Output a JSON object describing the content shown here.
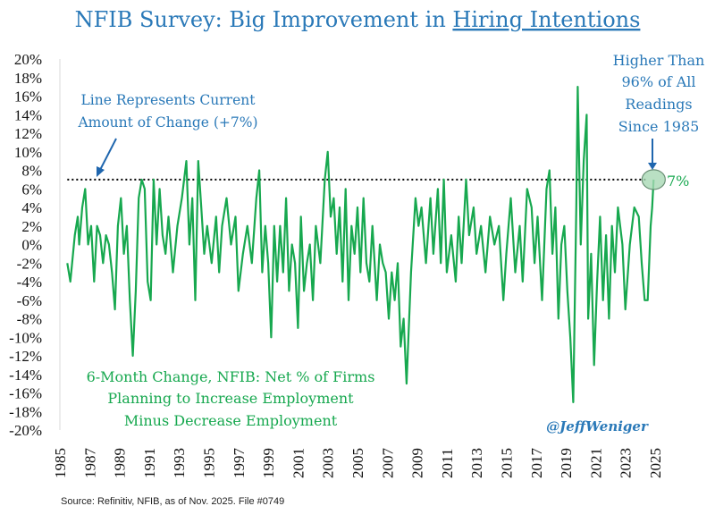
{
  "title": {
    "prefix": "NFIB Survey: Big Improvement in ",
    "underlined": "Hiring Intentions"
  },
  "annotations": {
    "current_line": [
      "Line Represents Current",
      "Amount of Change (+7%)"
    ],
    "percentile": [
      "Higher Than",
      "96% of All",
      "Readings",
      "Since 1985"
    ],
    "current_value_label": "7%",
    "series_description": [
      "6-Month Change, NFIB: Net % of Firms",
      "Planning to Increase Employment",
      "Minus Decrease Employment"
    ],
    "handle": "@JeffWeniger"
  },
  "source": "Source: Refinitiv, NFIB, as of Nov. 2025. File #0749",
  "colors": {
    "title": "#2a79b8",
    "series": "#17a84f",
    "reference_line": "#000000",
    "highlight_fill": "#a8d8b4"
  },
  "chart_data": {
    "type": "line",
    "title": "NFIB Survey: Big Improvement in Hiring Intentions",
    "xlabel": "",
    "ylabel": "",
    "xlim": [
      1985,
      2025
    ],
    "ylim": [
      -20,
      20
    ],
    "grid": false,
    "x_ticks": [
      "1985",
      "1987",
      "1989",
      "1991",
      "1993",
      "1995",
      "1997",
      "1999",
      "2001",
      "2003",
      "2005",
      "2007",
      "2009",
      "2011",
      "2013",
      "2015",
      "2017",
      "2019",
      "2021",
      "2023",
      "2025"
    ],
    "y_ticks": [
      "20%",
      "18%",
      "16%",
      "14%",
      "12%",
      "10%",
      "8%",
      "6%",
      "4%",
      "2%",
      "0%",
      "-2%",
      "-4%",
      "-6%",
      "-8%",
      "-10%",
      "-12%",
      "-14%",
      "-16%",
      "-18%",
      "-20%"
    ],
    "reference_line": {
      "value": 7,
      "style": "dotted"
    },
    "series": [
      {
        "points": [
          [
            1985.5,
            -2
          ],
          [
            1985.7,
            -4
          ],
          [
            1986,
            1
          ],
          [
            1986.2,
            3
          ],
          [
            1986.3,
            0
          ],
          [
            1986.5,
            4
          ],
          [
            1986.7,
            6
          ],
          [
            1986.9,
            0
          ],
          [
            1987.1,
            2
          ],
          [
            1987.3,
            -4
          ],
          [
            1987.5,
            2
          ],
          [
            1987.7,
            1
          ],
          [
            1987.9,
            -2
          ],
          [
            1988.1,
            1
          ],
          [
            1988.3,
            0
          ],
          [
            1988.5,
            -3
          ],
          [
            1988.7,
            -7
          ],
          [
            1988.9,
            2
          ],
          [
            1989.1,
            5
          ],
          [
            1989.3,
            -1
          ],
          [
            1989.5,
            2
          ],
          [
            1989.7,
            -6
          ],
          [
            1989.9,
            -12
          ],
          [
            1990.1,
            -5
          ],
          [
            1990.3,
            5
          ],
          [
            1990.5,
            7
          ],
          [
            1990.7,
            6
          ],
          [
            1990.9,
            -4
          ],
          [
            1991.1,
            -6
          ],
          [
            1991.3,
            7
          ],
          [
            1991.5,
            0
          ],
          [
            1991.7,
            6
          ],
          [
            1991.9,
            1
          ],
          [
            1992.1,
            -1
          ],
          [
            1992.3,
            3
          ],
          [
            1992.6,
            -3
          ],
          [
            1992.9,
            2
          ],
          [
            1993.2,
            5
          ],
          [
            1993.5,
            9
          ],
          [
            1993.7,
            0
          ],
          [
            1993.9,
            5
          ],
          [
            1994.1,
            -6
          ],
          [
            1994.3,
            9
          ],
          [
            1994.5,
            4
          ],
          [
            1994.7,
            -1
          ],
          [
            1994.9,
            2
          ],
          [
            1995.2,
            -2
          ],
          [
            1995.5,
            3
          ],
          [
            1995.7,
            -3
          ],
          [
            1995.9,
            2
          ],
          [
            1996.2,
            5
          ],
          [
            1996.5,
            0
          ],
          [
            1996.8,
            3
          ],
          [
            1997.0,
            -5
          ],
          [
            1997.3,
            -1
          ],
          [
            1997.6,
            2
          ],
          [
            1997.9,
            -2
          ],
          [
            1998.2,
            5
          ],
          [
            1998.4,
            8
          ],
          [
            1998.6,
            -3
          ],
          [
            1998.8,
            2
          ],
          [
            1999.0,
            -2
          ],
          [
            1999.2,
            -10
          ],
          [
            1999.4,
            2
          ],
          [
            1999.6,
            -4
          ],
          [
            1999.8,
            2
          ],
          [
            2000.0,
            -3
          ],
          [
            2000.2,
            5
          ],
          [
            2000.4,
            -5
          ],
          [
            2000.6,
            0
          ],
          [
            2000.8,
            -2
          ],
          [
            2001.0,
            -9
          ],
          [
            2001.2,
            3
          ],
          [
            2001.4,
            -5
          ],
          [
            2001.6,
            -2
          ],
          [
            2001.8,
            0
          ],
          [
            2002.0,
            -6
          ],
          [
            2002.2,
            2
          ],
          [
            2002.5,
            -2
          ],
          [
            2002.8,
            7
          ],
          [
            2003.0,
            10
          ],
          [
            2003.2,
            3
          ],
          [
            2003.4,
            5
          ],
          [
            2003.6,
            -1
          ],
          [
            2003.8,
            4
          ],
          [
            2004.0,
            -4
          ],
          [
            2004.2,
            6
          ],
          [
            2004.4,
            -6
          ],
          [
            2004.6,
            2
          ],
          [
            2004.8,
            -1
          ],
          [
            2005.0,
            4
          ],
          [
            2005.2,
            -3
          ],
          [
            2005.4,
            5
          ],
          [
            2005.6,
            -2
          ],
          [
            2005.8,
            -4
          ],
          [
            2006.0,
            2
          ],
          [
            2006.3,
            -6
          ],
          [
            2006.5,
            0
          ],
          [
            2006.7,
            -2
          ],
          [
            2006.9,
            -3
          ],
          [
            2007.1,
            -8
          ],
          [
            2007.3,
            -3
          ],
          [
            2007.5,
            -6
          ],
          [
            2007.7,
            -2
          ],
          [
            2007.9,
            -11
          ],
          [
            2008.1,
            -8
          ],
          [
            2008.3,
            -15
          ],
          [
            2008.6,
            -3
          ],
          [
            2008.9,
            5
          ],
          [
            2009.1,
            2
          ],
          [
            2009.3,
            4
          ],
          [
            2009.6,
            -2
          ],
          [
            2009.9,
            5
          ],
          [
            2010.1,
            -1
          ],
          [
            2010.4,
            6
          ],
          [
            2010.6,
            -2
          ],
          [
            2010.8,
            7
          ],
          [
            2011.0,
            -3
          ],
          [
            2011.3,
            1
          ],
          [
            2011.6,
            -4
          ],
          [
            2011.8,
            3
          ],
          [
            2012.0,
            -2
          ],
          [
            2012.3,
            7
          ],
          [
            2012.5,
            1
          ],
          [
            2012.8,
            4
          ],
          [
            2013.0,
            -1
          ],
          [
            2013.3,
            2
          ],
          [
            2013.6,
            -3
          ],
          [
            2013.9,
            3
          ],
          [
            2014.2,
            0
          ],
          [
            2014.5,
            2
          ],
          [
            2014.8,
            -6
          ],
          [
            2015.0,
            -1
          ],
          [
            2015.3,
            5
          ],
          [
            2015.6,
            -3
          ],
          [
            2015.9,
            2
          ],
          [
            2016.1,
            -4
          ],
          [
            2016.4,
            6
          ],
          [
            2016.7,
            4
          ],
          [
            2016.9,
            -2
          ],
          [
            2017.1,
            3
          ],
          [
            2017.4,
            -6
          ],
          [
            2017.7,
            6
          ],
          [
            2017.9,
            8
          ],
          [
            2018.1,
            -1
          ],
          [
            2018.3,
            4
          ],
          [
            2018.5,
            -8
          ],
          [
            2018.7,
            0
          ],
          [
            2018.9,
            2
          ],
          [
            2019.1,
            -5
          ],
          [
            2019.3,
            -10
          ],
          [
            2019.5,
            -17
          ],
          [
            2019.7,
            4
          ],
          [
            2019.8,
            17
          ],
          [
            2020.0,
            0
          ],
          [
            2020.2,
            9
          ],
          [
            2020.4,
            14
          ],
          [
            2020.5,
            -8
          ],
          [
            2020.7,
            -1
          ],
          [
            2020.9,
            -13
          ],
          [
            2021.1,
            -4
          ],
          [
            2021.3,
            3
          ],
          [
            2021.5,
            -6
          ],
          [
            2021.7,
            1
          ],
          [
            2021.9,
            -8
          ],
          [
            2022.1,
            2
          ],
          [
            2022.3,
            -3
          ],
          [
            2022.5,
            4
          ],
          [
            2022.8,
            0
          ],
          [
            2023.0,
            -7
          ],
          [
            2023.3,
            0
          ],
          [
            2023.6,
            4
          ],
          [
            2023.9,
            3
          ],
          [
            2024.1,
            -2
          ],
          [
            2024.3,
            -6
          ],
          [
            2024.5,
            -6
          ],
          [
            2024.7,
            2
          ],
          [
            2024.8,
            4
          ],
          [
            2024.9,
            7
          ]
        ]
      }
    ]
  }
}
